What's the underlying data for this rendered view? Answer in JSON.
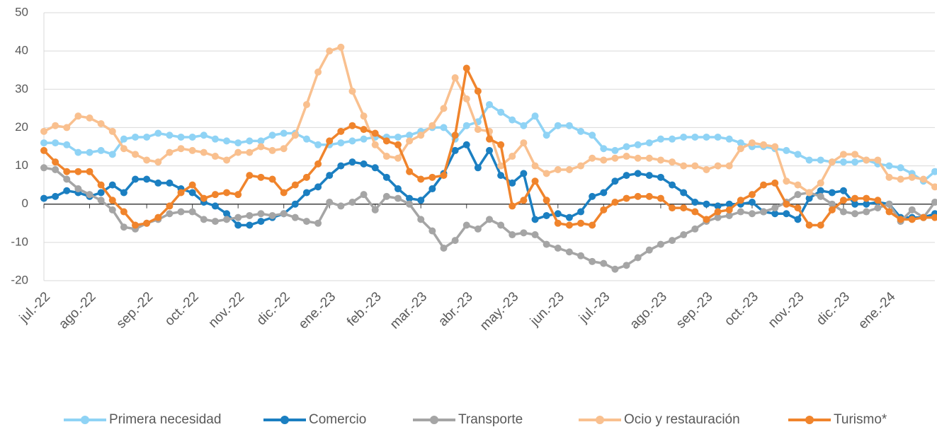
{
  "chart_data": {
    "type": "line",
    "categories": [
      "jul.-22",
      null,
      null,
      null,
      "ago.-22",
      null,
      null,
      null,
      null,
      "sep.-22",
      null,
      null,
      null,
      "oct.-22",
      null,
      null,
      null,
      "nov.-22",
      null,
      null,
      null,
      "dic.-22",
      null,
      null,
      null,
      "ene.-23",
      null,
      null,
      null,
      "feb.-23",
      null,
      null,
      null,
      "mar.-23",
      null,
      null,
      null,
      "abr.-23",
      null,
      null,
      null,
      "may.-23",
      null,
      null,
      null,
      "jun.-23",
      null,
      null,
      null,
      "jul.-23",
      null,
      null,
      null,
      null,
      "ago.-23",
      null,
      null,
      null,
      "sep.-23",
      null,
      null,
      null,
      "oct.-23",
      null,
      null,
      null,
      "nov.-23",
      null,
      null,
      null,
      "dic.-23",
      null,
      null,
      null,
      "ene.-24",
      null,
      null,
      null,
      null
    ],
    "series": [
      {
        "name": "Primera necesidad",
        "color": "#8fd3f5",
        "values": [
          16,
          16,
          15.5,
          13.5,
          13.5,
          14,
          13,
          17,
          17.5,
          17.5,
          18.5,
          18,
          17.5,
          17.5,
          18,
          17,
          16.5,
          16,
          16.5,
          16.5,
          18,
          18.5,
          18.5,
          17,
          15.5,
          15.5,
          16,
          16.5,
          17,
          17.5,
          17.5,
          17.5,
          18,
          19,
          20,
          20,
          17,
          20.5,
          21.5,
          26,
          24,
          22,
          20.5,
          23,
          18,
          20.5,
          20.5,
          19,
          18,
          14.5,
          14,
          15,
          15.5,
          16,
          17,
          17,
          17.5,
          17.5,
          17.5,
          17.5,
          17,
          16,
          15,
          15,
          14.5,
          14,
          13,
          11.5,
          11.5,
          11,
          11,
          11,
          11.5,
          10.5,
          10,
          9.5,
          8,
          6,
          8.5
        ]
      },
      {
        "name": "Comercio",
        "color": "#1b7fc1",
        "values": [
          1.5,
          2,
          3.5,
          3,
          2,
          3,
          5,
          3,
          6.5,
          6.5,
          5.5,
          5.5,
          4,
          3,
          0.5,
          -0.5,
          -2.5,
          -5.5,
          -5.5,
          -4.5,
          -3.5,
          -2.5,
          0,
          3,
          4.5,
          7.5,
          10,
          11,
          10.5,
          9.5,
          7,
          4,
          1.5,
          1,
          4,
          8,
          14,
          15.5,
          9.5,
          14,
          7.5,
          5.5,
          8,
          -4,
          -3,
          -2.5,
          -3.5,
          -2,
          2,
          3,
          6,
          7.5,
          8,
          7.5,
          7,
          5,
          3,
          0.5,
          0,
          -0.5,
          0,
          0,
          0.5,
          -2,
          -2.5,
          -2.5,
          -4,
          1.5,
          3.5,
          3,
          3.5,
          0,
          0,
          0.5,
          0,
          -3.5,
          -3.5,
          -3.5,
          -2.5
        ]
      },
      {
        "name": "Transporte",
        "color": "#a5a5a5",
        "values": [
          9.5,
          9,
          6.5,
          4,
          2.5,
          1,
          -1.5,
          -6,
          -6.5,
          -5,
          -4,
          -2.5,
          -2,
          -2,
          -4,
          -4.5,
          -4,
          -3.5,
          -3,
          -2.5,
          -3,
          -2.5,
          -3.5,
          -4.5,
          -5,
          0.5,
          -0.5,
          0.5,
          2.5,
          -1.5,
          2,
          1.5,
          0,
          -4,
          -7,
          -11.5,
          -9.5,
          -5.5,
          -6.5,
          -4,
          -5.5,
          -8,
          -7.5,
          -8,
          -10.5,
          -11.5,
          -12.5,
          -13.5,
          -15,
          -15.5,
          -17,
          -16,
          -14,
          -12,
          -10.5,
          -9.5,
          -8,
          -6.5,
          -4.5,
          -3.5,
          -3,
          -2,
          -2.5,
          -2,
          -1,
          0.5,
          2.5,
          3,
          2,
          0,
          -2,
          -2.5,
          -2,
          -1,
          0,
          -4.5,
          -1.5,
          -3.5,
          0.5
        ]
      },
      {
        "name": "Ocio y restauración",
        "color": "#f9c08f",
        "values": [
          19,
          20.5,
          20,
          23,
          22.5,
          21,
          19,
          14.5,
          13,
          11.5,
          11,
          13.5,
          14.5,
          14,
          13.5,
          12.5,
          11.5,
          13.5,
          13.5,
          15,
          14,
          14.5,
          18,
          26,
          34.5,
          40,
          41,
          29.5,
          23,
          15.5,
          12.5,
          12,
          16.5,
          18,
          20.5,
          25,
          33,
          27.5,
          19.5,
          19,
          10,
          12.5,
          16,
          10,
          8,
          9,
          9,
          10,
          12,
          11.5,
          12,
          12.5,
          12,
          12,
          11.5,
          11,
          10,
          10,
          9,
          10,
          10,
          14.5,
          16,
          15.5,
          15,
          6,
          5,
          3,
          5.5,
          11,
          13,
          13,
          11.5,
          11.5,
          7,
          6.5,
          7,
          6.5,
          4.5
        ]
      },
      {
        "name": "Turismo*",
        "color": "#f0842c",
        "values": [
          14,
          11,
          8.5,
          8.5,
          8.5,
          5,
          1,
          -2,
          -5.5,
          -5,
          -3.5,
          -0.5,
          3,
          5,
          1.5,
          2.5,
          3,
          2.5,
          7.5,
          7,
          6.5,
          3,
          5,
          7,
          10.5,
          16.5,
          19,
          20.5,
          19.5,
          18.5,
          16.5,
          15.5,
          8.5,
          6.5,
          7,
          7.5,
          18,
          35.5,
          29.5,
          17,
          15.5,
          -0.5,
          1,
          6,
          1,
          -5,
          -5.5,
          -5,
          -5.5,
          -1.5,
          0.5,
          1.5,
          2,
          2,
          1.5,
          -1,
          -1,
          -2,
          -4,
          -2,
          -1.5,
          1,
          2.5,
          5,
          5.5,
          0,
          -1,
          -5.5,
          -5.5,
          -1.5,
          1,
          1.5,
          1.5,
          1,
          -2,
          -4,
          -4,
          -3.5,
          -3.5
        ]
      }
    ],
    "ylim": [
      -20,
      50
    ],
    "yticks": [
      -20,
      -10,
      0,
      10,
      20,
      30,
      40,
      50
    ],
    "grid": true,
    "legend": "bottom"
  }
}
